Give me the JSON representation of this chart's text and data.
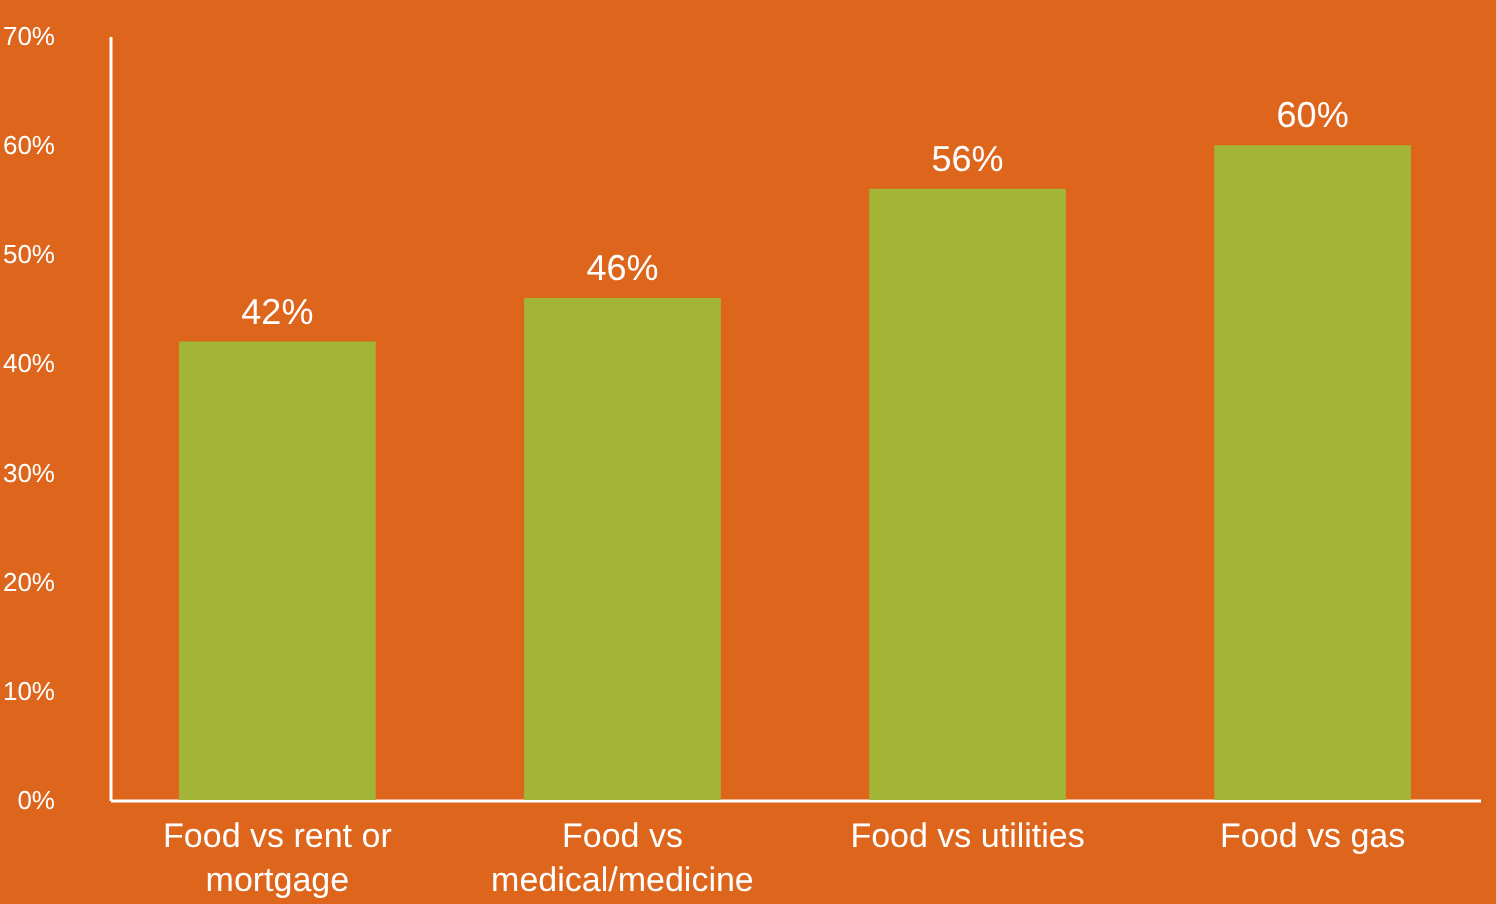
{
  "chart_data": {
    "type": "bar",
    "categories": [
      "Food vs rent or mortgage",
      "Food vs medical/medicine",
      "Food vs utilities",
      "Food vs gas"
    ],
    "values": [
      42,
      46,
      56,
      60
    ],
    "color": "#a3b536",
    "value_labels": [
      "42%",
      "46%",
      "56%",
      "60%"
    ],
    "ylim": [
      0,
      70
    ],
    "yticks": [
      {
        "value": 0,
        "label": "0%"
      },
      {
        "value": 10,
        "label": "10%"
      },
      {
        "value": 20,
        "label": "20%"
      },
      {
        "value": 30,
        "label": "30%"
      },
      {
        "value": 40,
        "label": "40%"
      },
      {
        "value": 50,
        "label": "50%"
      },
      {
        "value": 60,
        "label": "60%"
      },
      {
        "value": 70,
        "label": "70%"
      }
    ],
    "grid": false
  }
}
